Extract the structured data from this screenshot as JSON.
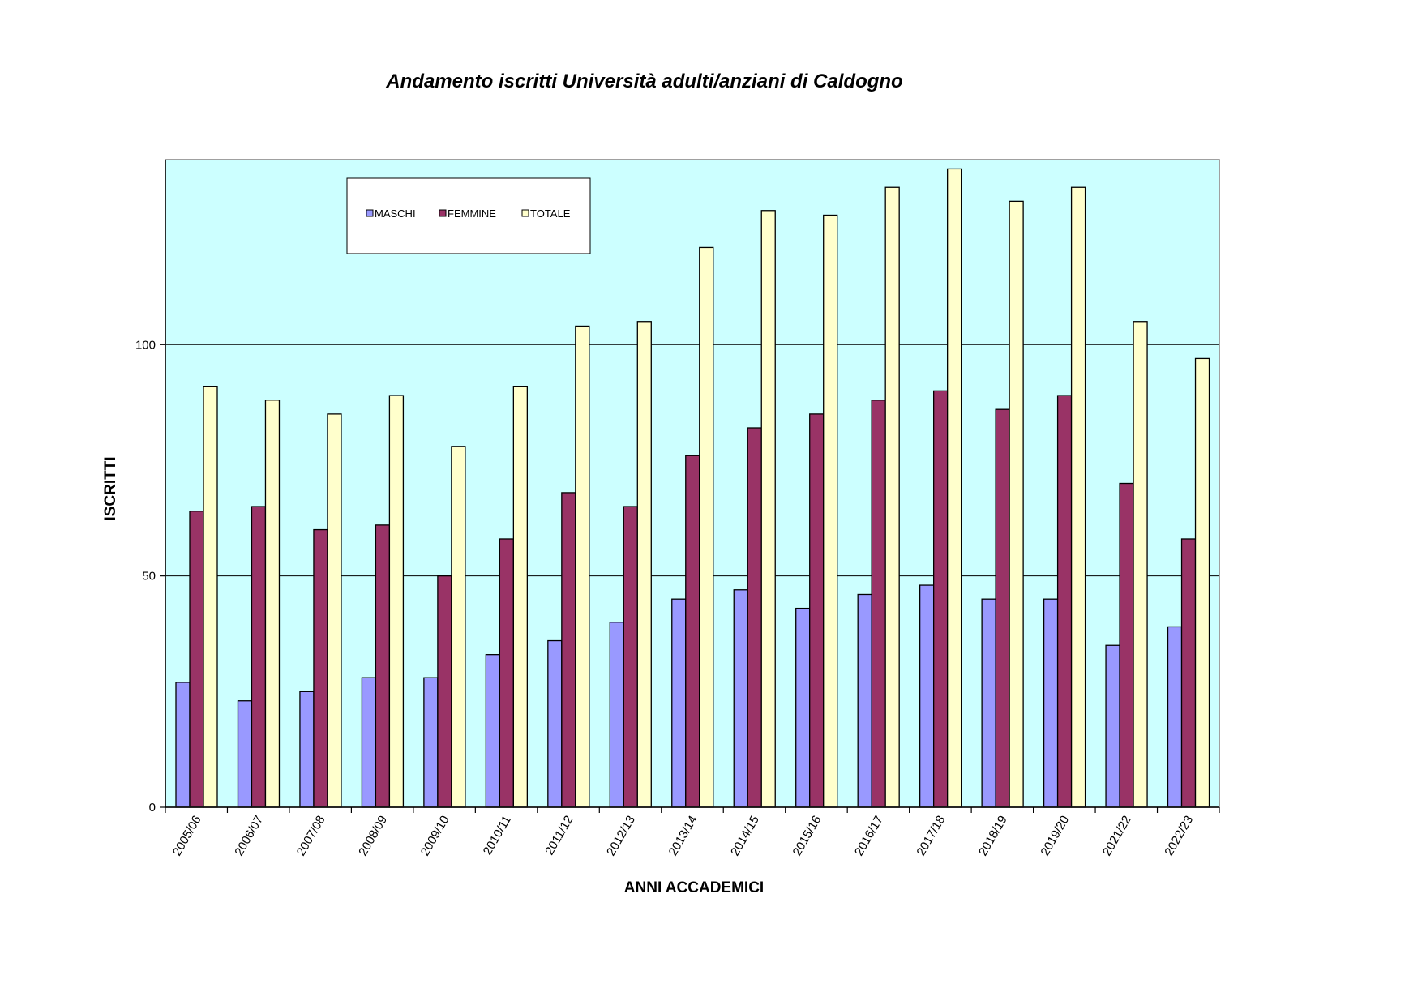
{
  "chart_data": {
    "type": "bar",
    "title": "Andamento iscritti Università adulti/anziani di Caldogno",
    "xlabel": "ANNI ACCADEMICI",
    "ylabel": "ISCRITTI",
    "ylim": [
      0,
      140
    ],
    "yticks": [
      0,
      50,
      100
    ],
    "grid": true,
    "legend_position": "top-left",
    "plot_background": "#ccffff",
    "categories": [
      "2005/06",
      "2006/07",
      "2007/08",
      "2008/09",
      "2009/10",
      "2010/11",
      "2011/12",
      "2012/13",
      "2013/14",
      "2014/15",
      "2015/16",
      "2016/17",
      "2017/18",
      "2018/19",
      "2019/20",
      "2021/22",
      "2022/23"
    ],
    "series": [
      {
        "name": "MASCHI",
        "color": "#9999ff",
        "values": [
          27,
          23,
          25,
          28,
          28,
          33,
          36,
          40,
          45,
          47,
          43,
          46,
          48,
          45,
          45,
          35,
          39
        ]
      },
      {
        "name": "FEMMINE",
        "color": "#993366",
        "values": [
          64,
          65,
          60,
          61,
          50,
          58,
          68,
          65,
          76,
          82,
          85,
          88,
          90,
          86,
          89,
          70,
          58
        ]
      },
      {
        "name": "TOTALE",
        "color": "#ffffcc",
        "values": [
          91,
          88,
          85,
          89,
          78,
          91,
          104,
          105,
          121,
          129,
          128,
          134,
          138,
          131,
          134,
          105,
          97
        ]
      }
    ]
  }
}
